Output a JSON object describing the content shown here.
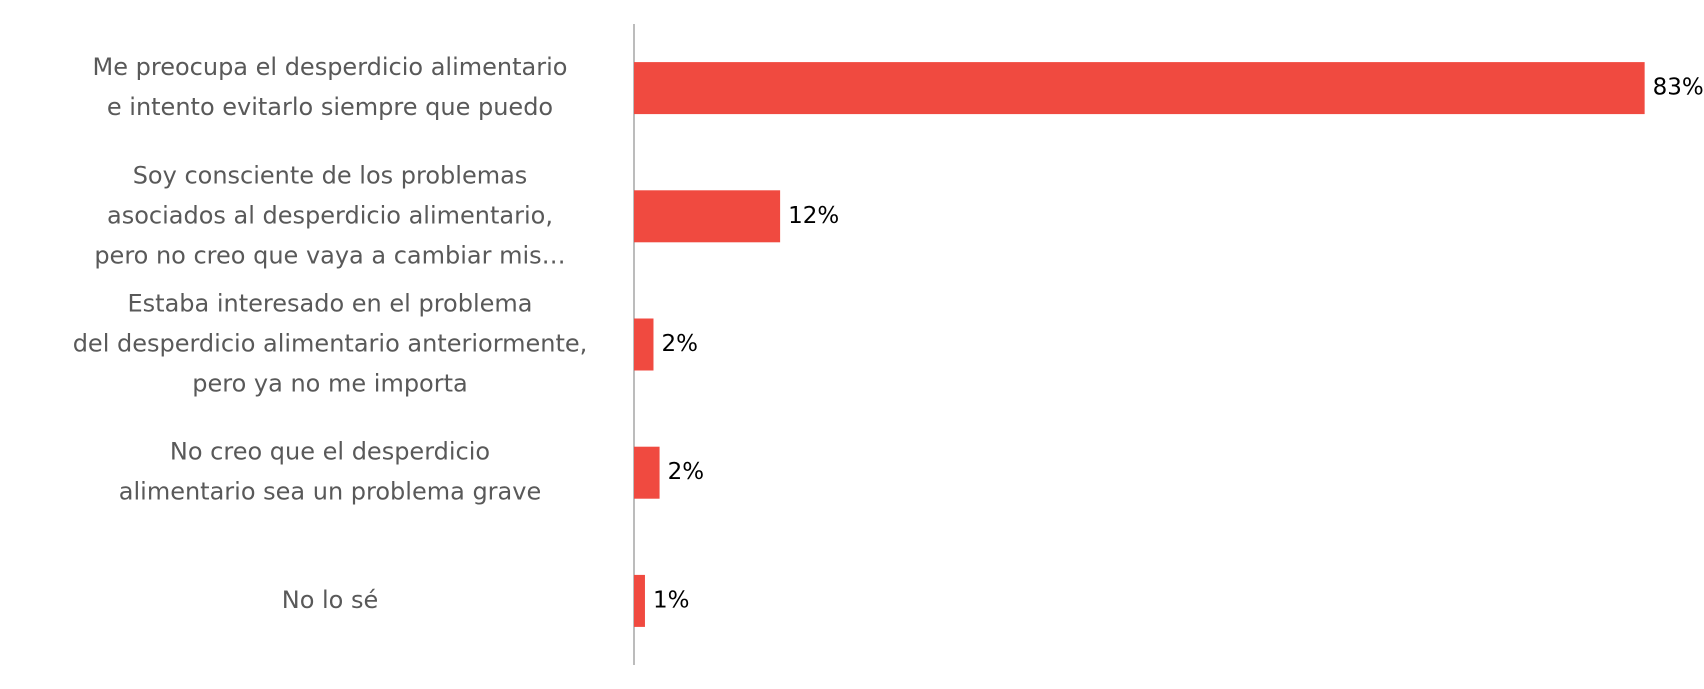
{
  "chart_data": {
    "type": "hbar",
    "categories": [
      [
        "Me preocupa el desperdicio alimentario",
        "e intento evitarlo siempre que puedo"
      ],
      [
        "Soy consciente de los problemas",
        "asociados al desperdicio alimentario,",
        "pero no creo que vaya a cambiar mis…"
      ],
      [
        "Estaba interesado en el problema",
        "del desperdicio alimentario anteriormente,",
        "pero ya no me importa"
      ],
      [
        "No creo que el desperdicio",
        "alimentario sea un problema grave"
      ],
      [
        "No lo sé"
      ]
    ],
    "values": [
      83,
      12,
      1.6,
      2.1,
      0.9
    ],
    "value_labels": [
      "83%",
      "12%",
      "2%",
      "2%",
      "1%"
    ],
    "color": "#f04a40",
    "xlim": [
      0,
      85
    ]
  }
}
